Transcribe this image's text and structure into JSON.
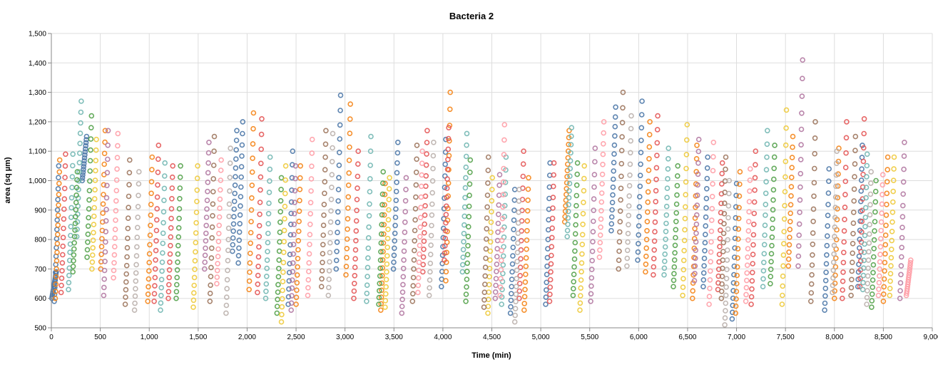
{
  "chart_data": {
    "type": "scatter",
    "title": "Bacteria 2",
    "xlabel": "Time (min)",
    "ylabel": "area (sq µm)",
    "xlim": [
      0,
      9000
    ],
    "ylim": [
      500,
      1500
    ],
    "x_ticks": [
      0,
      500,
      1000,
      1500,
      2000,
      2500,
      3000,
      3500,
      4000,
      4500,
      5000,
      5500,
      6000,
      6500,
      7000,
      7500,
      8000,
      8500,
      9000
    ],
    "x_tick_labels": [
      "0",
      "500",
      "1,000",
      "1,500",
      "2,000",
      "2,500",
      "3,000",
      "3,500",
      "4,000",
      "4,500",
      "5,000",
      "5,500",
      "6,000",
      "6,500",
      "7,000",
      "7,500",
      "8,000",
      "8,500",
      "9,000"
    ],
    "y_ticks": [
      500,
      600,
      700,
      800,
      900,
      1000,
      1100,
      1200,
      1300,
      1400,
      1500
    ],
    "y_tick_labels": [
      "500",
      "600",
      "700",
      "800",
      "900",
      "1,000",
      "1,100",
      "1,200",
      "1,300",
      "1,400",
      "1,500"
    ],
    "grid": true,
    "legend": "none",
    "marker": "open-circle",
    "palette": [
      "#4c78a8",
      "#f58518",
      "#e45756",
      "#72b7b2",
      "#54a24b",
      "#eeca3b",
      "#b279a2",
      "#ff9da6",
      "#9d755d",
      "#bab0ac"
    ],
    "series": [
      {
        "segments": [
          [
            5,
            600,
            690
          ],
          [
            30,
            590,
            1050
          ],
          [
            315,
            1000,
            1150
          ],
          [
            1850,
            760,
            1170
          ],
          [
            1910,
            720,
            1200
          ],
          [
            2420,
            580,
            1100
          ],
          [
            2910,
            700,
            1290
          ],
          [
            3495,
            700,
            1130
          ],
          [
            3985,
            640,
            1140
          ],
          [
            4690,
            550,
            970
          ],
          [
            5050,
            580,
            1060
          ],
          [
            5720,
            830,
            1250
          ],
          [
            5990,
            730,
            1270
          ],
          [
            6660,
            640,
            1080
          ],
          [
            6955,
            530,
            990
          ],
          [
            7900,
            560,
            1040
          ],
          [
            8240,
            640,
            1120
          ]
        ]
      },
      {
        "segments": [
          [
            40,
            600,
            1070
          ],
          [
            505,
            700,
            1170
          ],
          [
            985,
            590,
            1080
          ],
          [
            2020,
            630,
            1230
          ],
          [
            2500,
            580,
            1050
          ],
          [
            3010,
            680,
            1260
          ],
          [
            3365,
            560,
            990
          ],
          [
            4030,
            660,
            1300
          ],
          [
            4830,
            560,
            1010
          ],
          [
            5245,
            860,
            1170
          ],
          [
            6070,
            690,
            1200
          ],
          [
            6550,
            600,
            1120
          ],
          [
            6990,
            550,
            1030
          ],
          [
            7530,
            710,
            1150
          ],
          [
            8000,
            600,
            1110
          ],
          [
            8500,
            590,
            1080
          ]
        ]
      },
      {
        "segments": [
          [
            100,
            620,
            1090
          ],
          [
            1050,
            590,
            1120
          ],
          [
            1195,
            600,
            1050
          ],
          [
            2105,
            620,
            1210
          ],
          [
            3090,
            600,
            1100
          ],
          [
            3795,
            690,
            1170
          ],
          [
            4015,
            730,
            1180
          ],
          [
            4780,
            600,
            1100
          ],
          [
            5090,
            590,
            1060
          ],
          [
            6150,
            680,
            1220
          ],
          [
            6810,
            630,
            1060
          ],
          [
            7150,
            580,
            1100
          ],
          [
            8080,
            600,
            1200
          ],
          [
            8260,
            640,
            1210
          ]
        ]
      },
      {
        "segments": [
          [
            175,
            630,
            1090
          ],
          [
            260,
            810,
            1270
          ],
          [
            1115,
            560,
            1060
          ],
          [
            2190,
            600,
            1080
          ],
          [
            3220,
            590,
            1150
          ],
          [
            4200,
            690,
            1160
          ],
          [
            4600,
            580,
            1080
          ],
          [
            5270,
            810,
            1180
          ],
          [
            6260,
            680,
            1110
          ],
          [
            7270,
            640,
            1170
          ],
          [
            8290,
            630,
            1090
          ]
        ]
      },
      {
        "segments": [
          [
            220,
            690,
            1030
          ],
          [
            365,
            740,
            1220
          ],
          [
            1275,
            600,
            1050
          ],
          [
            2305,
            550,
            1010
          ],
          [
            3345,
            580,
            1030
          ],
          [
            4235,
            590,
            1070
          ],
          [
            5330,
            610,
            1060
          ],
          [
            6355,
            640,
            1050
          ],
          [
            7345,
            650,
            1120
          ],
          [
            8380,
            570,
            1000
          ]
        ]
      },
      {
        "segments": [
          [
            415,
            700,
            1140
          ],
          [
            1450,
            570,
            1050
          ],
          [
            2350,
            520,
            1050
          ],
          [
            3410,
            570,
            1010
          ],
          [
            4460,
            550,
            1010
          ],
          [
            5400,
            560,
            1050
          ],
          [
            6450,
            610,
            1190
          ],
          [
            7465,
            580,
            1240
          ],
          [
            8565,
            610,
            1080
          ]
        ]
      },
      {
        "segments": [
          [
            535,
            610,
            1170
          ],
          [
            1565,
            700,
            1130
          ],
          [
            2450,
            560,
            1050
          ],
          [
            3580,
            550,
            1010
          ],
          [
            4535,
            600,
            1020
          ],
          [
            5510,
            590,
            1110
          ],
          [
            6570,
            660,
            1140
          ],
          [
            7630,
            710,
            1410
          ],
          [
            8670,
            600,
            1130
          ]
        ]
      },
      {
        "segments": [
          [
            635,
            670,
            1160
          ],
          [
            1690,
            650,
            1070
          ],
          [
            2620,
            610,
            1140
          ],
          [
            3745,
            620,
            1100
          ],
          [
            4585,
            610,
            1190
          ],
          [
            5600,
            740,
            1200
          ],
          [
            6720,
            580,
            1130
          ],
          [
            7095,
            590,
            1040
          ],
          [
            8450,
            610,
            1020
          ],
          [
            8735,
            610,
            730
          ]
        ]
      },
      {
        "segments": [
          [
            755,
            580,
            1070
          ],
          [
            1620,
            590,
            1150
          ],
          [
            2760,
            640,
            1170
          ],
          [
            3690,
            590,
            1120
          ],
          [
            4420,
            570,
            1080
          ],
          [
            5795,
            700,
            1300
          ],
          [
            6845,
            600,
            1080
          ],
          [
            7760,
            590,
            1200
          ],
          [
            8170,
            610,
            1150
          ]
        ]
      },
      {
        "segments": [
          [
            850,
            560,
            1030
          ],
          [
            1785,
            550,
            1110
          ],
          [
            2830,
            610,
            1160
          ],
          [
            3860,
            610,
            1130
          ],
          [
            4735,
            520,
            970
          ],
          [
            5880,
            710,
            1220
          ],
          [
            6880,
            510,
            1000
          ],
          [
            7980,
            620,
            1100
          ],
          [
            8330,
            580,
            1030
          ]
        ]
      }
    ]
  }
}
